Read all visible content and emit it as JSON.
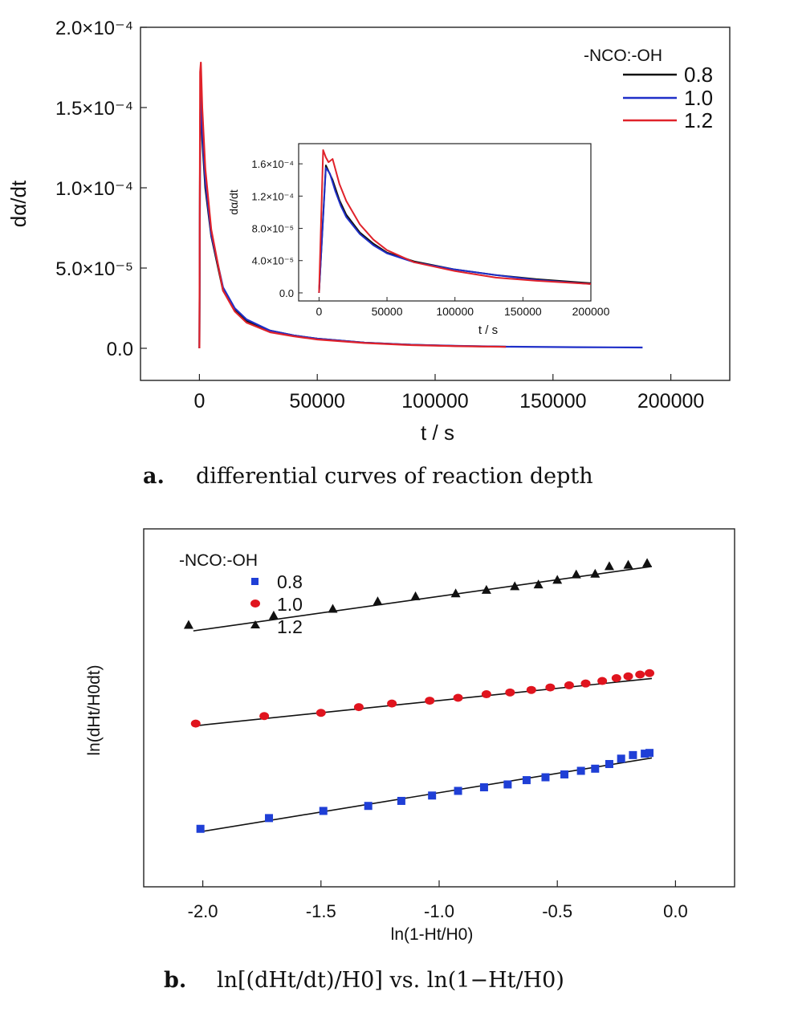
{
  "chart_data": [
    {
      "id": "a",
      "type": "line",
      "caption": {
        "label": "a.",
        "text": "differential curves of reaction depth"
      },
      "xlabel": "t / s",
      "ylabel": "dα/dt",
      "xlim": [
        -25000,
        225000
      ],
      "ylim": [
        -2e-05,
        0.0002
      ],
      "x_ticks": [
        "0",
        "50000",
        "100000",
        "150000",
        "200000"
      ],
      "x_tick_values": [
        0,
        50000,
        100000,
        150000,
        200000
      ],
      "y_ticks": [
        "0.0",
        "5.0×10⁻⁵",
        "1.0×10⁻⁴",
        "1.5×10⁻⁴",
        "2.0×10⁻⁴"
      ],
      "y_tick_values": [
        0,
        5e-05,
        0.0001,
        0.00015,
        0.0002
      ],
      "legend": {
        "title": "-NCO:-OH",
        "position": "top-right"
      },
      "series": [
        {
          "name": "0.8",
          "color": "#111111",
          "x": [
            0,
            300,
            600,
            1200,
            2500,
            5000,
            10000,
            15000,
            20000,
            30000,
            40000,
            50000,
            70000,
            90000,
            110000,
            130000
          ],
          "y": [
            0,
            0.00014,
            0.000155,
            0.00013,
            0.0001,
            7e-05,
            3.6e-05,
            2.4e-05,
            1.7e-05,
            1.1e-05,
            8e-06,
            6e-06,
            3.5e-06,
            2.2e-06,
            1.4e-06,
            1e-06
          ]
        },
        {
          "name": "1.0",
          "color": "#1f2fc8",
          "x": [
            0,
            300,
            600,
            1200,
            2500,
            5000,
            10000,
            15000,
            20000,
            30000,
            40000,
            50000,
            70000,
            90000,
            110000,
            130000,
            160000,
            188000
          ],
          "y": [
            0,
            0.000145,
            0.00016,
            0.000135,
            0.000104,
            7.1e-05,
            3.8e-05,
            2.5e-05,
            1.8e-05,
            1.1e-05,
            8e-06,
            6e-06,
            3.5e-06,
            2.2e-06,
            1.5e-06,
            1e-06,
            7e-07,
            5e-07
          ]
        },
        {
          "name": "1.2",
          "color": "#e0222a",
          "x": [
            0,
            300,
            600,
            1200,
            2500,
            5000,
            10000,
            15000,
            20000,
            30000,
            40000,
            50000,
            70000,
            90000,
            110000,
            130000
          ],
          "y": [
            0,
            0.000172,
            0.000178,
            0.00015,
            0.000112,
            7.4e-05,
            3.6e-05,
            2.3e-05,
            1.6e-05,
            1e-05,
            7.5e-06,
            5.5e-06,
            3.3e-06,
            2e-06,
            1.3e-06,
            9e-07
          ]
        }
      ],
      "inset": {
        "type": "line",
        "xlabel": "t / s",
        "ylabel": "dα/dt",
        "xlim": [
          -15000,
          200000
        ],
        "ylim": [
          -1e-05,
          0.000185
        ],
        "x_ticks": [
          "0",
          "50000",
          "100000",
          "150000",
          "200000"
        ],
        "x_tick_values": [
          0,
          50000,
          100000,
          150000,
          200000
        ],
        "y_ticks": [
          "0.0",
          "4.0×10⁻⁵",
          "8.0×10⁻⁵",
          "1.2×10⁻⁴",
          "1.6×10⁻⁴"
        ],
        "y_tick_values": [
          0,
          4e-05,
          8e-05,
          0.00012,
          0.00016
        ],
        "series": [
          {
            "name": "0.8",
            "color": "#111111",
            "x": [
              0,
              5000,
              10000,
              15000,
              20000,
              30000,
              40000,
              50000,
              70000,
              100000,
              130000,
              160000,
              200000
            ],
            "y": [
              0,
              0.000158,
              0.00014,
              0.000115,
              9.7e-05,
              7.5e-05,
              6.1e-05,
              5e-05,
              3.9e-05,
              2.9e-05,
              2.2e-05,
              1.7e-05,
              1.2e-05
            ]
          },
          {
            "name": "1.0",
            "color": "#1f2fc8",
            "x": [
              0,
              5000,
              8000,
              12000,
              16000,
              20000,
              30000,
              40000,
              50000,
              70000,
              100000,
              130000,
              160000,
              200000
            ],
            "y": [
              0,
              0.000155,
              0.000148,
              0.000126,
              0.000108,
              9.4e-05,
              7.3e-05,
              5.9e-05,
              4.9e-05,
              3.8e-05,
              2.9e-05,
              2.2e-05,
              1.6e-05,
              1.1e-05
            ]
          },
          {
            "name": "1.2",
            "color": "#e0222a",
            "x": [
              0,
              3000,
              5000,
              7000,
              10000,
              15000,
              20000,
              30000,
              40000,
              50000,
              70000,
              100000,
              130000,
              160000,
              200000
            ],
            "y": [
              0,
              0.000177,
              0.000168,
              0.000162,
              0.000166,
              0.000135,
              0.000114,
              8.5e-05,
              6.6e-05,
              5.3e-05,
              3.8e-05,
              2.7e-05,
              1.9e-05,
              1.5e-05,
              1.1e-05
            ]
          }
        ]
      }
    },
    {
      "id": "b",
      "type": "scatter",
      "caption": {
        "label": "b.",
        "text": "ln[(dHt/dt)/H0] vs. ln(1−Ht/H0)"
      },
      "xlabel": "ln(1-Ht/H0)",
      "ylabel": "ln(dHt/H0dt)",
      "xlim": [
        -2.25,
        0.25
      ],
      "ylim": [
        0,
        10
      ],
      "x_ticks": [
        "-2.0",
        "-1.5",
        "-1.0",
        "-0.5",
        "0.0"
      ],
      "x_tick_values": [
        -2.0,
        -1.5,
        -1.0,
        -0.5,
        0.0
      ],
      "y_tick_labels_shown": false,
      "legend": {
        "title": "-NCO:-OH",
        "position": "top-left"
      },
      "series": [
        {
          "name": "0.8",
          "marker": "square",
          "color": "#1f3fd6",
          "x": [
            -2.01,
            -1.72,
            -1.49,
            -1.3,
            -1.16,
            -1.03,
            -0.92,
            -0.81,
            -0.71,
            -0.63,
            -0.55,
            -0.47,
            -0.4,
            -0.34,
            -0.28,
            -0.23,
            -0.18,
            -0.13,
            -0.11
          ],
          "y": [
            1.62,
            1.92,
            2.12,
            2.26,
            2.4,
            2.55,
            2.68,
            2.78,
            2.86,
            2.98,
            3.06,
            3.14,
            3.24,
            3.3,
            3.43,
            3.58,
            3.68,
            3.72,
            3.74
          ],
          "fit": {
            "x": [
              -2.0,
              -0.1
            ],
            "y": [
              1.55,
              3.6
            ]
          }
        },
        {
          "name": "1.0",
          "marker": "circle",
          "color": "#e0141e",
          "x": [
            -2.03,
            -1.74,
            -1.5,
            -1.34,
            -1.2,
            -1.04,
            -0.92,
            -0.8,
            -0.7,
            -0.61,
            -0.53,
            -0.45,
            -0.38,
            -0.31,
            -0.25,
            -0.2,
            -0.15,
            -0.11
          ],
          "y": [
            4.56,
            4.77,
            4.86,
            5.02,
            5.12,
            5.2,
            5.28,
            5.38,
            5.43,
            5.5,
            5.57,
            5.63,
            5.68,
            5.75,
            5.83,
            5.88,
            5.93,
            5.97
          ],
          "fit": {
            "x": [
              -2.03,
              -0.1
            ],
            "y": [
              4.5,
              5.82
            ]
          }
        },
        {
          "name": "1.2",
          "marker": "triangle",
          "color": "#111111",
          "x": [
            -2.06,
            -1.7,
            -1.45,
            -1.26,
            -1.1,
            -0.93,
            -0.8,
            -0.68,
            -0.58,
            -0.5,
            -0.42,
            -0.34,
            -0.28,
            -0.2,
            -0.12
          ],
          "y": [
            7.32,
            7.58,
            7.77,
            7.98,
            8.12,
            8.2,
            8.3,
            8.4,
            8.45,
            8.58,
            8.73,
            8.75,
            8.96,
            9.0,
            9.05
          ],
          "fit": {
            "x": [
              -2.04,
              -0.1
            ],
            "y": [
              7.15,
              8.95
            ]
          }
        }
      ]
    }
  ]
}
